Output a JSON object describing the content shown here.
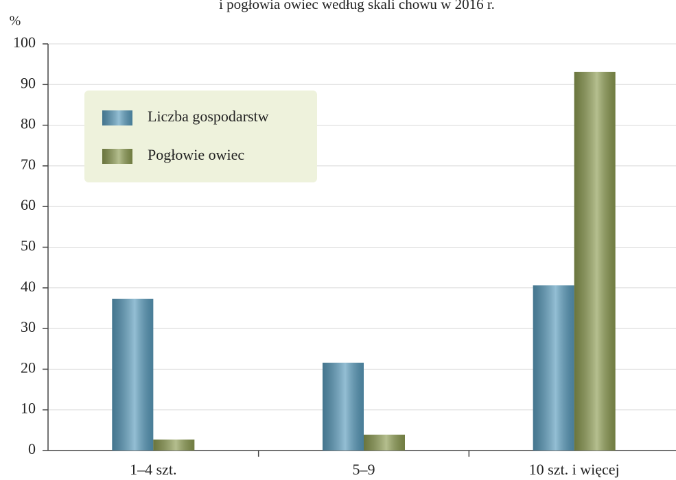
{
  "chart_data": {
    "type": "bar",
    "title": "i pogłowia owiec według skali chowu w 2016 r.",
    "y_label": "%",
    "categories": [
      "1–4 szt.",
      "5–9",
      "10 szt. i więcej"
    ],
    "series": [
      {
        "name": "Liczba gospodarstw",
        "color": "#5a9cbd",
        "values": [
          37.3,
          21.6,
          40.6
        ]
      },
      {
        "name": "Pogłowie owiec",
        "color": "#8d9c52",
        "values": [
          2.7,
          3.9,
          93.1
        ]
      }
    ],
    "ylim": [
      0,
      100
    ],
    "yticks": [
      0,
      10,
      20,
      30,
      40,
      50,
      60,
      70,
      80,
      90,
      100
    ],
    "grid": true,
    "legend": "upper left"
  }
}
